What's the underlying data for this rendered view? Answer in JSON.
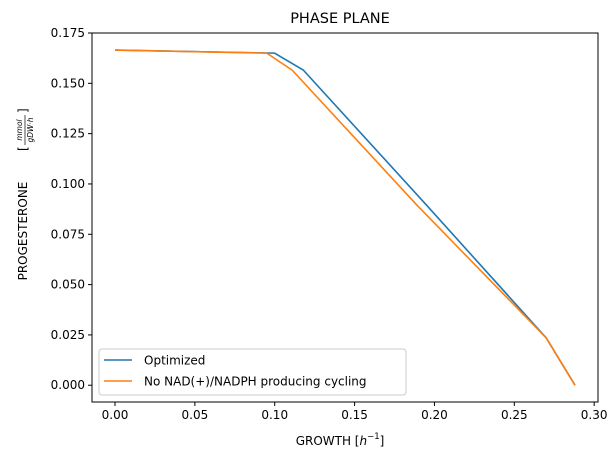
{
  "chart_data": {
    "type": "line",
    "title": "PHASE PLANE",
    "xlabel": {
      "text": "GROWTH [",
      "math": "h",
      "sup": "−1",
      "close": "]"
    },
    "ylabel": {
      "text": "PROGESTERONE ",
      "num": "mmol",
      "den": "gDW·h"
    },
    "xlim": [
      -0.0144,
      0.3024
    ],
    "ylim": [
      -0.00833,
      0.175
    ],
    "xticks": [
      0.0,
      0.05,
      0.1,
      0.15,
      0.2,
      0.25,
      0.3
    ],
    "xtick_labels": [
      "0.00",
      "0.05",
      "0.10",
      "0.15",
      "0.20",
      "0.25",
      "0.30"
    ],
    "yticks": [
      0.0,
      0.025,
      0.05,
      0.075,
      0.1,
      0.125,
      0.15,
      0.175
    ],
    "ytick_labels": [
      "0.000",
      "0.025",
      "0.050",
      "0.075",
      "0.100",
      "0.125",
      "0.150",
      "0.175"
    ],
    "grid": false,
    "legend_position": "lower-left",
    "series": [
      {
        "name": "Optimized",
        "color": "#1f77b4",
        "x": [
          0.0,
          0.1,
          0.118,
          0.195,
          0.27,
          0.288
        ],
        "y": [
          0.1665,
          0.165,
          0.1565,
          0.0895,
          0.0235,
          0.0
        ]
      },
      {
        "name": "No NAD(+)/NADPH producing cycling",
        "color": "#ff7f0e",
        "x": [
          0.0,
          0.095,
          0.111,
          0.189,
          0.27,
          0.288
        ],
        "y": [
          0.1665,
          0.165,
          0.1565,
          0.0895,
          0.0235,
          0.0
        ]
      }
    ]
  }
}
